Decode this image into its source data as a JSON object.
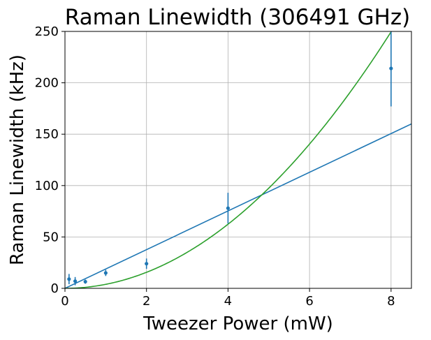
{
  "chart_data": {
    "type": "scatter",
    "title": "Raman Linewidth (306491 GHz)",
    "xlabel": "Tweezer Power (mW)",
    "ylabel": "Raman Linewidth (kHz)",
    "xlim": [
      0,
      8.5
    ],
    "ylim": [
      0,
      250
    ],
    "xticks": [
      0,
      2,
      4,
      6,
      8
    ],
    "yticks": [
      0,
      50,
      100,
      150,
      200,
      250
    ],
    "grid": true,
    "series": [
      {
        "kind": "errorbar",
        "color": "#1f77b4",
        "x": [
          0.1,
          0.25,
          0.5,
          1,
          2,
          4,
          8
        ],
        "y": [
          9,
          7,
          6.5,
          15,
          24,
          78,
          214
        ],
        "yerr": [
          5,
          4,
          2,
          3,
          5,
          15,
          37
        ]
      },
      {
        "kind": "fit-linear",
        "color": "#1f77b4",
        "x": [
          0,
          8.5
        ],
        "y": [
          0,
          160
        ]
      },
      {
        "kind": "fit-quadratic",
        "color": "#2ca02c",
        "coefficient": 3.9
      }
    ]
  }
}
